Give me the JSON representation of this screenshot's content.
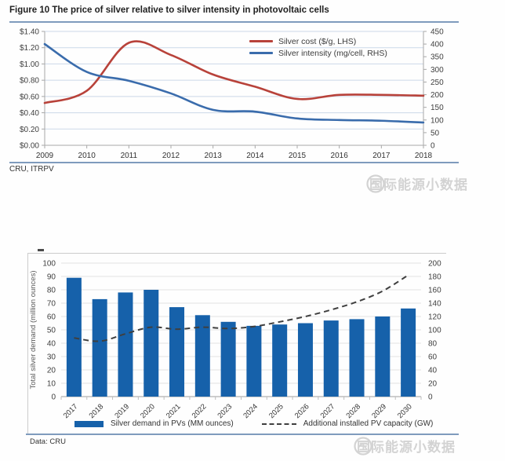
{
  "page": {
    "title": "Figure 10  The price of silver relative to silver intensity in photovoltaic cells",
    "top_source": "CRU, ITRPV",
    "bottom_source": "Data: CRU",
    "watermark_text": "国际能源小数据"
  },
  "colors": {
    "silver_cost": "#b8423a",
    "silver_intensity": "#3a6cac",
    "demand_bar": "#1661aa",
    "pv_capacity": "#3f3f3f",
    "grid_top": "#ccd8e8",
    "grid_bottom": "#e3e3e3",
    "axis": "#a8a8a8",
    "watermark": "#d3d3d3"
  },
  "chart_data": [
    {
      "type": "line",
      "title": "The price of silver relative to silver intensity in photovoltaic cells",
      "x": [
        "2009",
        "2010",
        "2011",
        "2012",
        "2013",
        "2014",
        "2015",
        "2016",
        "2017",
        "2018"
      ],
      "series": [
        {
          "name": "Silver cost ($/g, LHS)",
          "axis": "left",
          "values": [
            0.52,
            0.67,
            1.26,
            1.11,
            0.87,
            0.72,
            0.57,
            0.62,
            0.62,
            0.61
          ]
        },
        {
          "name": "Silver intensity (mg/cell, RHS)",
          "axis": "right",
          "values": [
            400,
            290,
            255,
            205,
            140,
            133,
            106,
            100,
            97,
            90
          ]
        }
      ],
      "left_axis": {
        "ticks": [
          "$1.40",
          "$1.20",
          "$1.00",
          "$0.80",
          "$0.60",
          "$0.40",
          "$0.20",
          "$0.00"
        ],
        "min": 0,
        "max": 1.4
      },
      "right_axis": {
        "ticks": [
          "450",
          "400",
          "350",
          "300",
          "250",
          "200",
          "150",
          "100",
          "50",
          "0"
        ],
        "min": 0,
        "max": 450
      },
      "grid": true,
      "legend_position": "top-right"
    },
    {
      "type": "bar",
      "categories": [
        "2017",
        "2018",
        "2019",
        "2020",
        "2021",
        "2022",
        "2023",
        "2024",
        "2025",
        "2026",
        "2027",
        "2028",
        "2029",
        "2030"
      ],
      "bar_series": {
        "name": "Silver demand in PVs (MM ounces)",
        "axis": "left",
        "values": [
          89,
          73,
          78,
          80,
          67,
          61,
          56,
          53,
          54,
          55,
          57,
          58,
          60,
          66
        ]
      },
      "line_series": {
        "name": "Additional installed PV capacity (GW)",
        "axis": "right",
        "style": "dashed",
        "values": [
          88,
          83,
          94,
          104,
          101,
          104,
          102,
          105,
          112,
          120,
          130,
          142,
          158,
          182
        ]
      },
      "ylabel_left": "Total silver demand (million ounces)",
      "left_axis": {
        "ticks": [
          "100",
          "90",
          "80",
          "70",
          "60",
          "50",
          "40",
          "30",
          "20",
          "10",
          "0"
        ],
        "min": 0,
        "max": 100
      },
      "right_axis": {
        "ticks": [
          "200",
          "180",
          "160",
          "140",
          "120",
          "100",
          "80",
          "60",
          "40",
          "20",
          "0"
        ],
        "min": 0,
        "max": 200
      },
      "grid": true,
      "legend_position": "bottom"
    }
  ]
}
